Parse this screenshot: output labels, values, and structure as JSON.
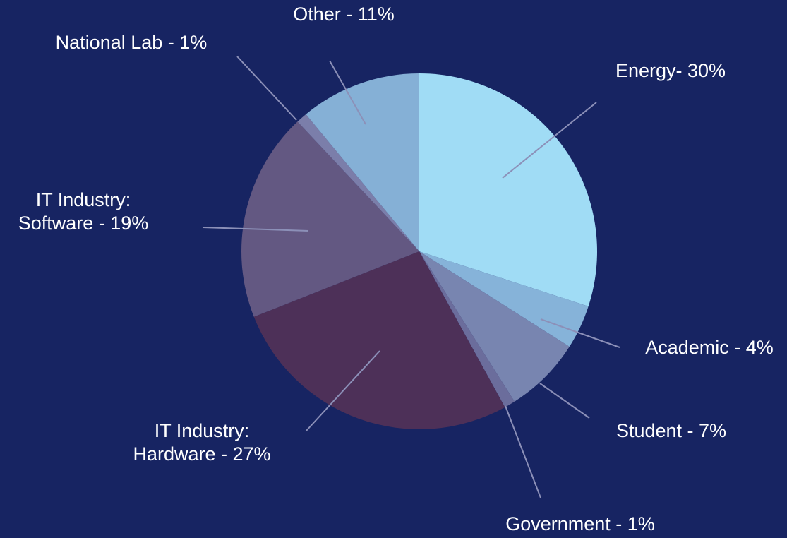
{
  "chart_data": {
    "type": "pie",
    "value_labels": [
      [
        "Energy- 30%"
      ],
      [
        "Academic - 4%"
      ],
      [
        "Student - 7%"
      ],
      [
        "Government - 1%"
      ],
      [
        "IT Industry:",
        "Hardware - 27%"
      ],
      [
        "IT Industry:",
        "Software - 19%"
      ],
      [
        "National Lab - 1%"
      ],
      [
        "Other - 11%"
      ]
    ],
    "values": [
      30,
      4,
      7,
      1,
      27,
      19,
      1,
      11
    ],
    "colors": [
      "#a0dcf5",
      "#86b3d9",
      "#7885b0",
      "#6b6d9c",
      "#4d3058",
      "#635882",
      "#7b7eaa",
      "#85b0d6"
    ]
  }
}
